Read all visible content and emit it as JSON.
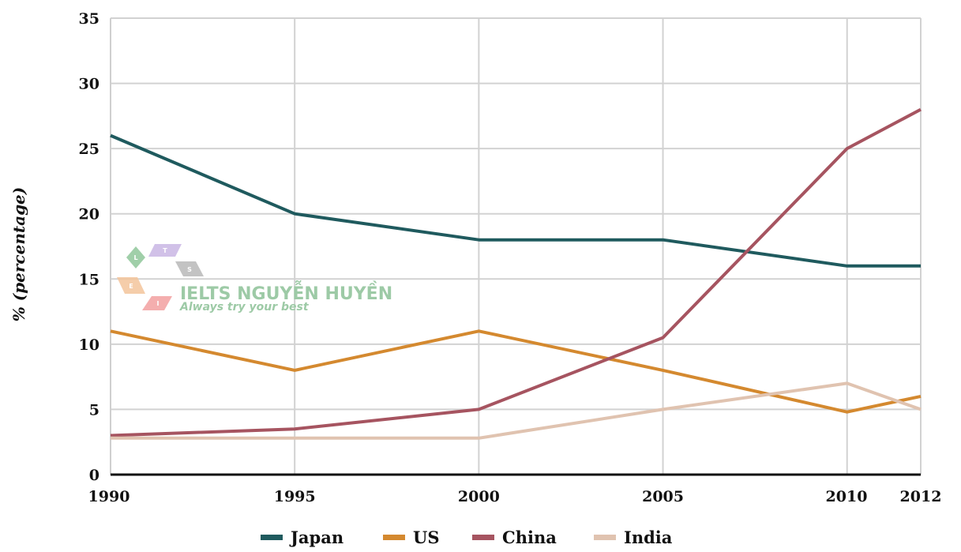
{
  "chart_data": {
    "type": "line",
    "title": "",
    "xlabel": "",
    "ylabel": "% (percentage)",
    "x": [
      1990,
      1995,
      2000,
      2005,
      2010,
      2012
    ],
    "x_tick_labels": [
      "1990",
      "1995",
      "2000",
      "2005",
      "2010",
      "2012"
    ],
    "y_tick_labels": [
      "0",
      "5",
      "10",
      "15",
      "20",
      "25",
      "30",
      "35"
    ],
    "ylim": [
      0,
      35
    ],
    "xlim": [
      1990,
      2012
    ],
    "grid": true,
    "legend_position": "bottom",
    "series": [
      {
        "name": "Japan",
        "color": "#1f5a5e",
        "values": [
          26,
          20,
          18,
          18,
          16,
          16
        ]
      },
      {
        "name": "US",
        "color": "#d4892f",
        "values": [
          11,
          8,
          11,
          8,
          4.8,
          6
        ]
      },
      {
        "name": "China",
        "color": "#a65460",
        "values": [
          3,
          3.5,
          5,
          10.5,
          25,
          28
        ]
      },
      {
        "name": "India",
        "color": "#e0c3b0",
        "values": [
          2.8,
          2.8,
          2.8,
          5,
          7,
          5
        ]
      }
    ]
  },
  "watermark": {
    "title": "IELTS NGUYỄN HUYỀN",
    "subtitle": "Always try your best",
    "letters": [
      "L",
      "T",
      "S",
      "E",
      "I"
    ],
    "colors": [
      "#8fc79a",
      "#c9b6e4",
      "#b9b9b9",
      "#f3c49b",
      "#f2a0a0"
    ]
  }
}
